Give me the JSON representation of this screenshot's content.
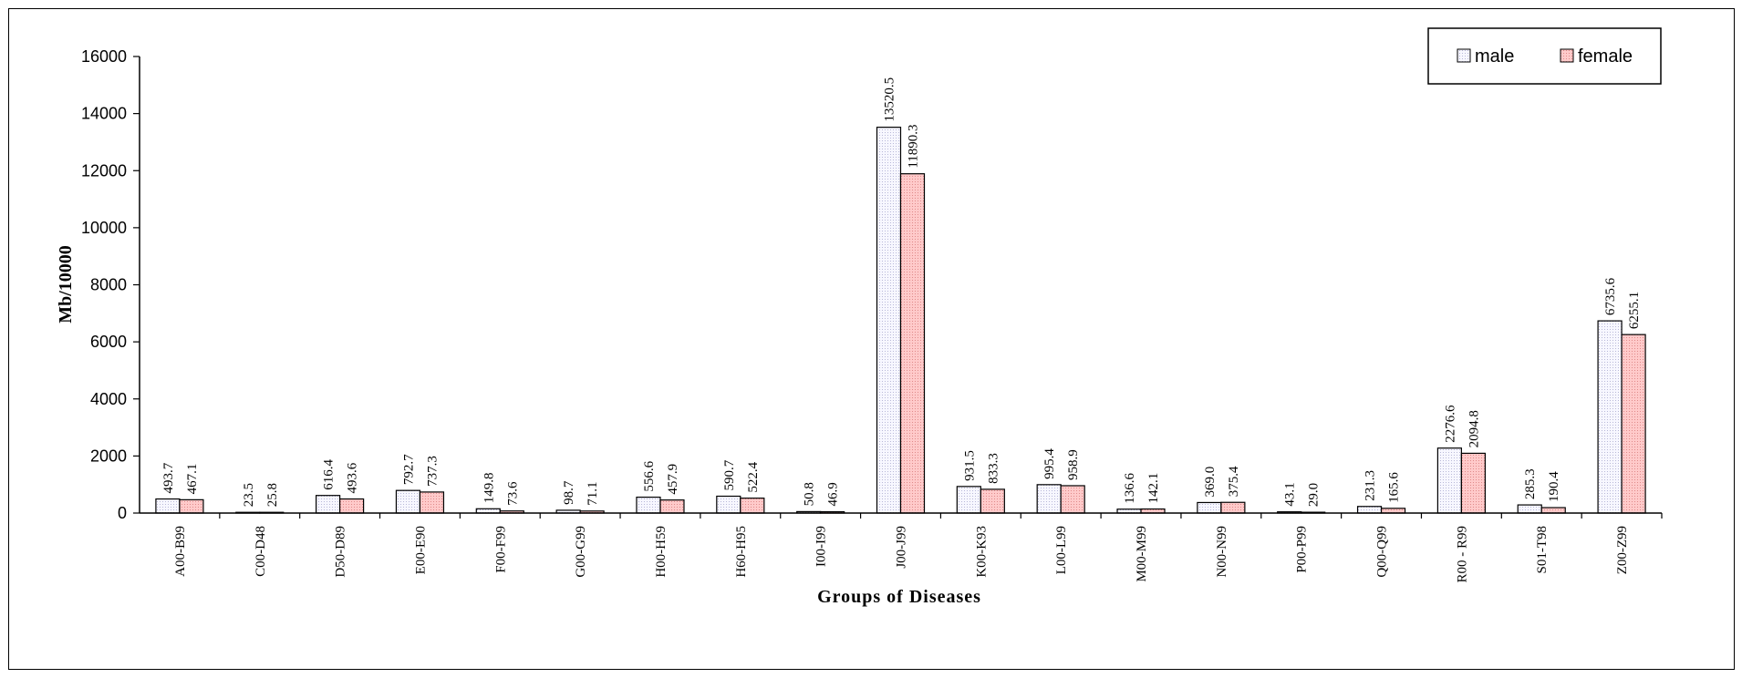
{
  "chart_data": {
    "type": "bar",
    "title": "",
    "xlabel": "Groups of Diseases",
    "ylabel": "Mb/10000",
    "ylim": [
      0,
      16000
    ],
    "yticks": [
      0,
      2000,
      4000,
      6000,
      8000,
      10000,
      12000,
      14000,
      16000
    ],
    "categories": [
      "A00-B99",
      "C00-D48",
      "D50-D89",
      "E00-E90",
      "F00-F99",
      "G00-G99",
      "H00-H59",
      "H60-H95",
      "I00-I99",
      "J00-J99",
      "K00-K93",
      "L00-L99",
      "M00-M99",
      "N00-N99",
      "P00-P99",
      "Q00-Q99",
      "R00 - R99",
      "S01-T98",
      "Z00-Z99"
    ],
    "series": [
      {
        "name": "male",
        "color": "#f4f4ff",
        "values": [
          493.7,
          23.5,
          616.4,
          792.7,
          149.8,
          98.7,
          556.6,
          590.7,
          50.8,
          13520.5,
          931.5,
          995.4,
          136.6,
          369.0,
          43.1,
          231.3,
          2276.6,
          285.3,
          6735.6
        ],
        "labels": [
          "493.7",
          "23.5",
          "616.4",
          "792.7",
          "149.8",
          "98.7",
          "556.6",
          "590.7",
          "50.8",
          "13520.5",
          "931.5",
          "995.4",
          "136.6",
          "369.0",
          "43.1",
          "231.3",
          "2276.6",
          "285.3",
          "6735.6"
        ]
      },
      {
        "name": "female",
        "color": "#ffc4c4",
        "values": [
          467.1,
          25.8,
          493.6,
          737.3,
          73.6,
          71.1,
          457.9,
          522.4,
          46.9,
          11890.3,
          833.3,
          958.9,
          142.1,
          375.4,
          29.0,
          165.6,
          2094.8,
          190.4,
          6255.1
        ],
        "labels": [
          "467.1",
          "25.8",
          "493.6",
          "737.3",
          "73.6",
          "71.1",
          "457.9",
          "522.4",
          "46.9",
          "11890.3",
          "833.3",
          "958.9",
          "142.1",
          "375.4",
          "29.0",
          "165.6",
          "2094.8",
          "190.4",
          "6255.1"
        ]
      }
    ],
    "grid": false,
    "legend": "top-right"
  }
}
